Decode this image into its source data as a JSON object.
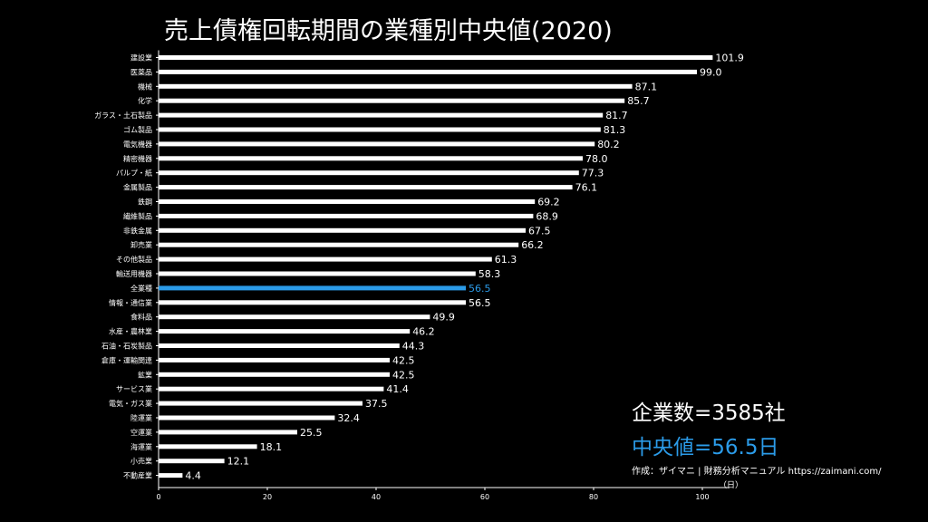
{
  "chart_data": {
    "type": "bar",
    "orientation": "horizontal",
    "title": "売上債権回転期間の業種別中央値(2020)",
    "categories": [
      "建設業",
      "医薬品",
      "機械",
      "化学",
      "ガラス・土石製品",
      "ゴム製品",
      "電気機器",
      "精密機器",
      "パルプ・紙",
      "金属製品",
      "鉄鋼",
      "繊維製品",
      "非鉄金属",
      "卸売業",
      "その他製品",
      "輸送用機器",
      "全業種",
      "情報・通信業",
      "食料品",
      "水産・農林業",
      "石油・石炭製品",
      "倉庫・運輸関連",
      "鉱業",
      "サービス業",
      "電気・ガス業",
      "陸運業",
      "空運業",
      "海運業",
      "小売業",
      "不動産業"
    ],
    "values": [
      101.9,
      99.0,
      87.1,
      85.7,
      81.7,
      81.3,
      80.2,
      78.0,
      77.3,
      76.1,
      69.2,
      68.9,
      67.5,
      66.2,
      61.3,
      58.3,
      56.5,
      56.5,
      49.9,
      46.2,
      44.3,
      42.5,
      42.5,
      41.4,
      37.5,
      32.4,
      25.5,
      18.1,
      12.1,
      4.4
    ],
    "value_labels": [
      "101.9",
      "99.0",
      "87.1",
      "85.7",
      "81.7",
      "81.3",
      "80.2",
      "78.0",
      "77.3",
      "76.1",
      "69.2",
      "68.9",
      "67.5",
      "66.2",
      "61.3",
      "58.3",
      "56.5",
      "56.5",
      "49.9",
      "46.2",
      "44.3",
      "42.5",
      "42.5",
      "41.4",
      "37.5",
      "32.4",
      "25.5",
      "18.1",
      "12.1",
      "4.4"
    ],
    "highlight_category": "全業種",
    "xlim": [
      0,
      105
    ],
    "xticks": [
      0,
      20,
      40,
      60,
      80,
      100
    ],
    "grid": false,
    "colors": {
      "bar": "#ffffff",
      "highlight": "#2b9be8",
      "background": "#000000",
      "text": "#ffffff"
    }
  },
  "annotations": {
    "company_count": "企業数=3585社",
    "median": "中央値=56.5日",
    "credit": "作成：ザイマニ | 財務分析マニュアル https://zaimani.com/",
    "unit": "（日）"
  }
}
